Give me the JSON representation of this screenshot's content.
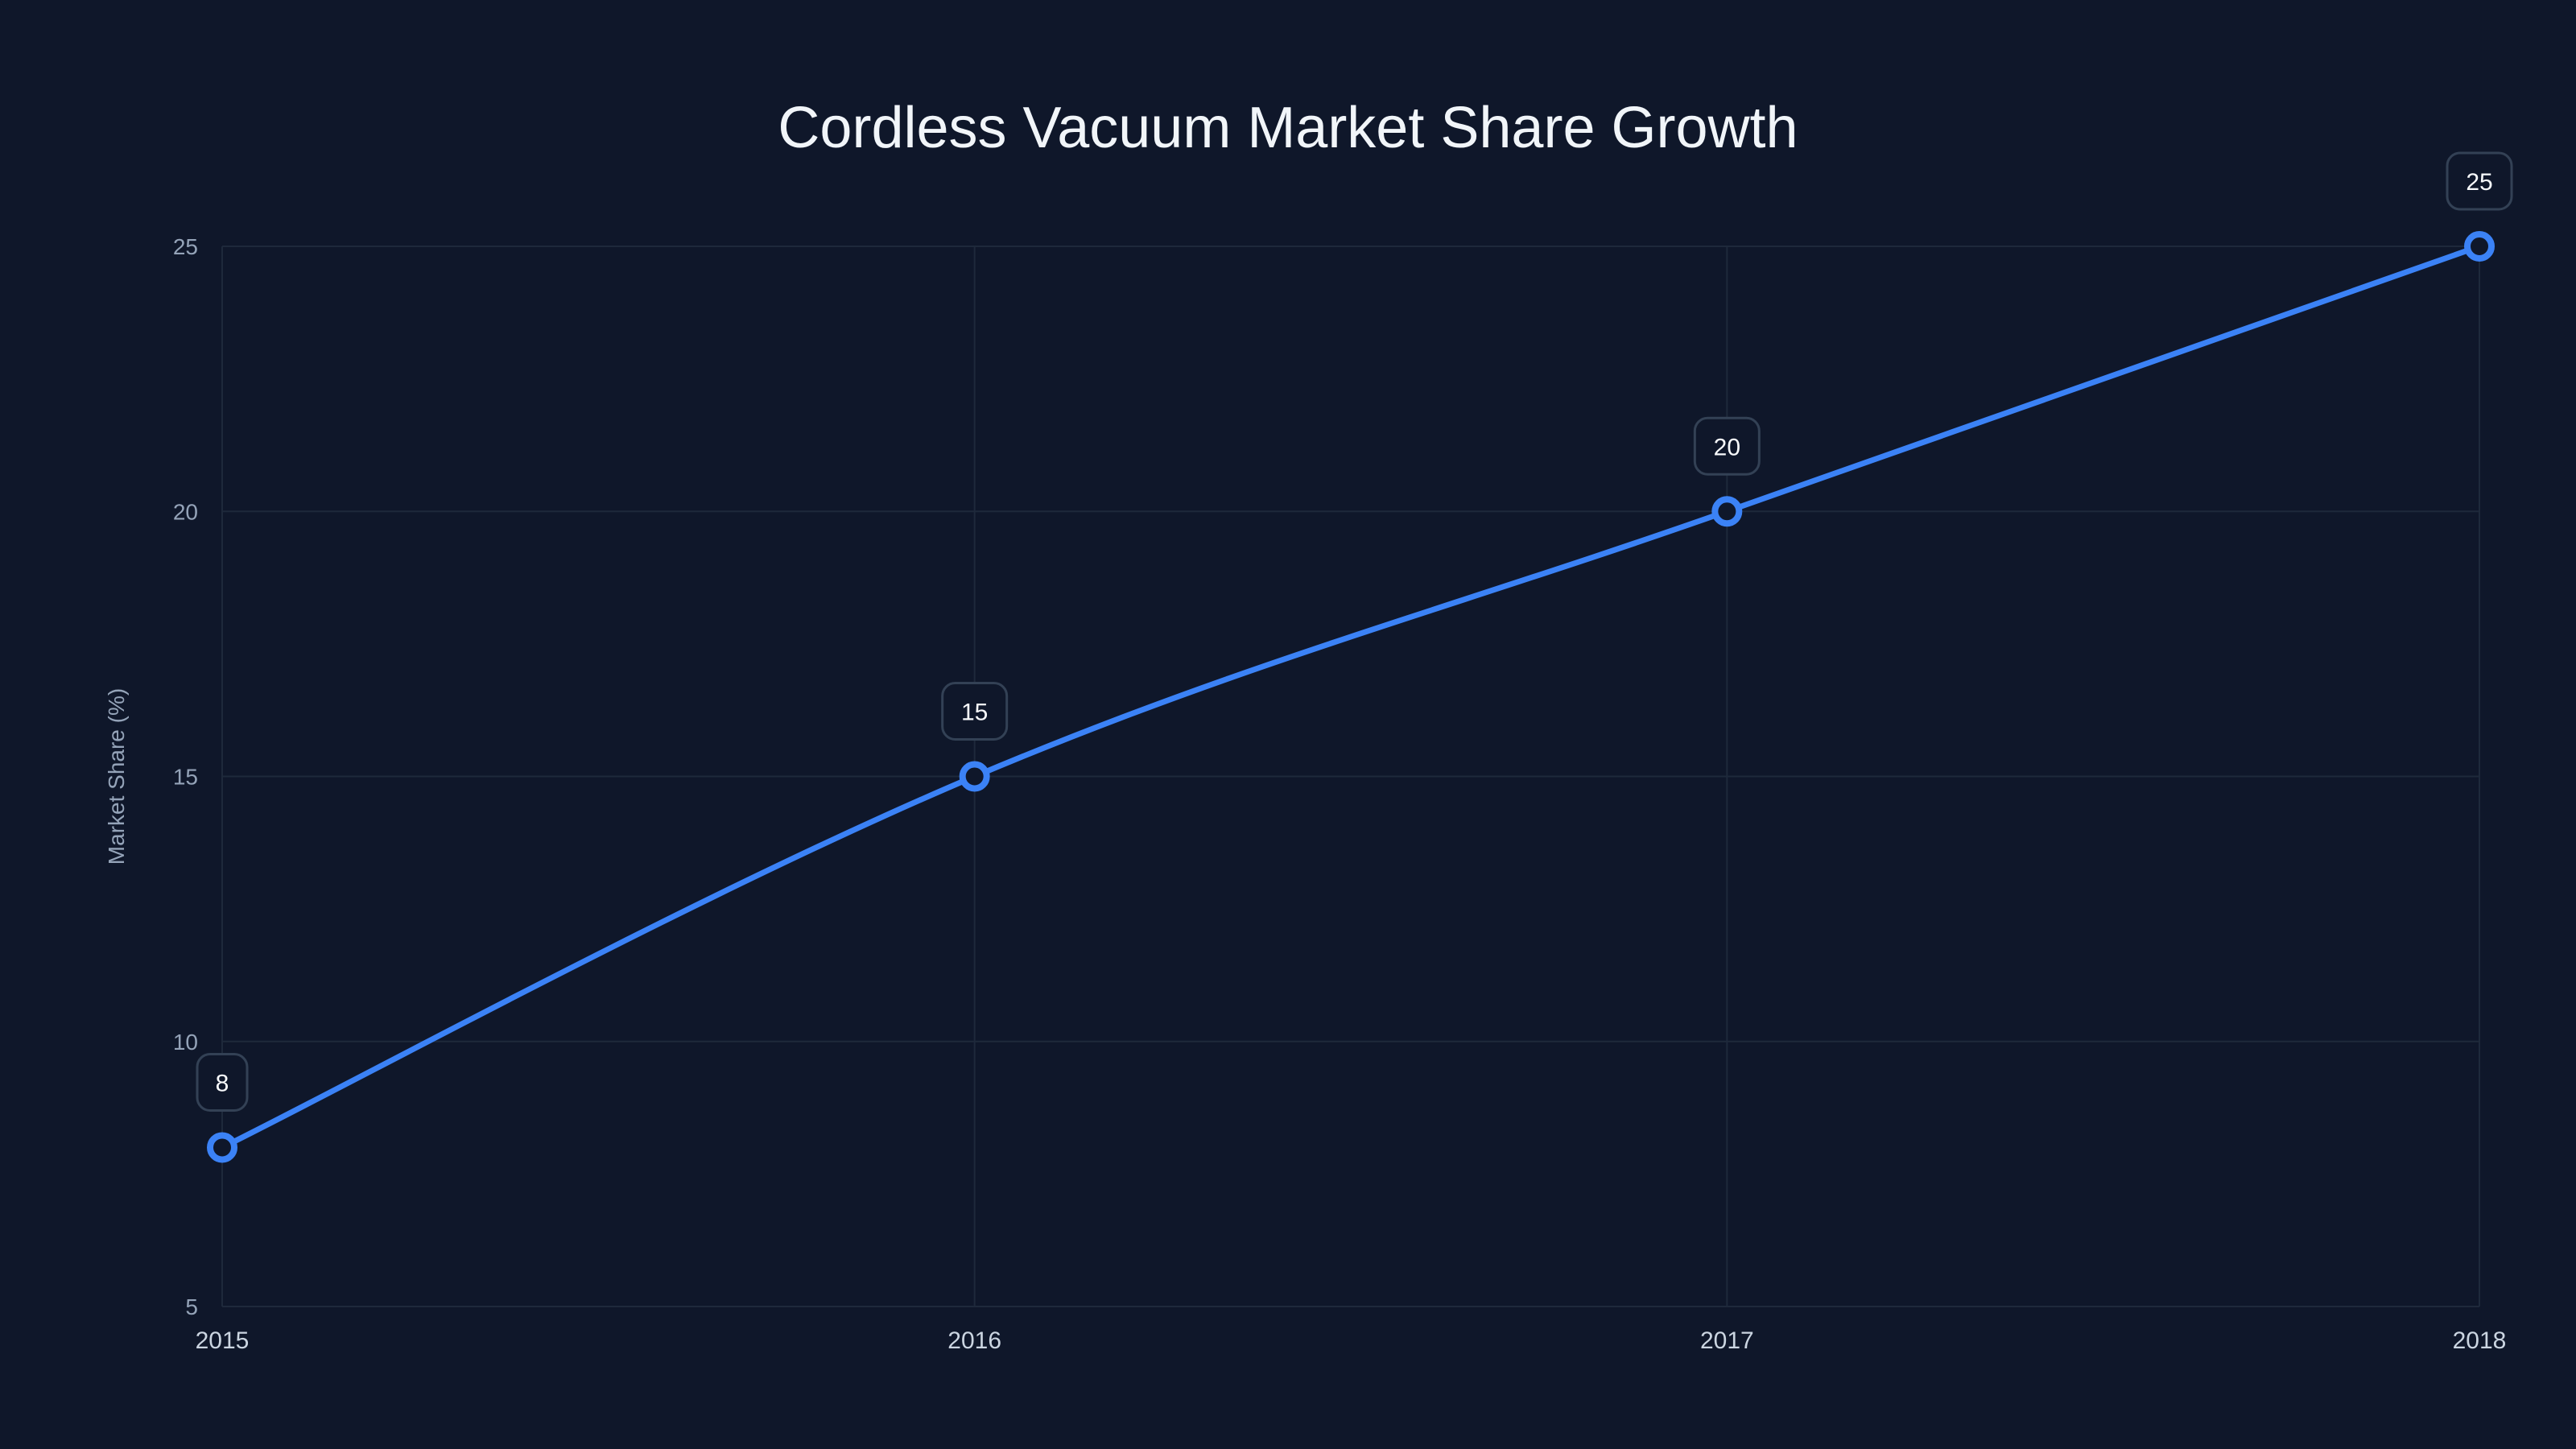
{
  "chart_data": {
    "type": "line",
    "title": "Cordless Vacuum Market Share Growth",
    "xlabel": "",
    "ylabel": "Market Share (%)",
    "categories": [
      "2015",
      "2016",
      "2017",
      "2018"
    ],
    "series": [
      {
        "name": "Market Share",
        "values": [
          8,
          15,
          20,
          25
        ],
        "color": "#3b82f6"
      }
    ],
    "yticks": [
      5,
      10,
      15,
      20,
      25
    ],
    "ylim": [
      5,
      25
    ],
    "grid": true,
    "legend": "none",
    "data_labels": [
      "8",
      "15",
      "20",
      "25"
    ]
  },
  "colors": {
    "background": "#0f172a",
    "line": "#3b82f6",
    "grid": "#1e293b",
    "label_border": "#334155"
  }
}
